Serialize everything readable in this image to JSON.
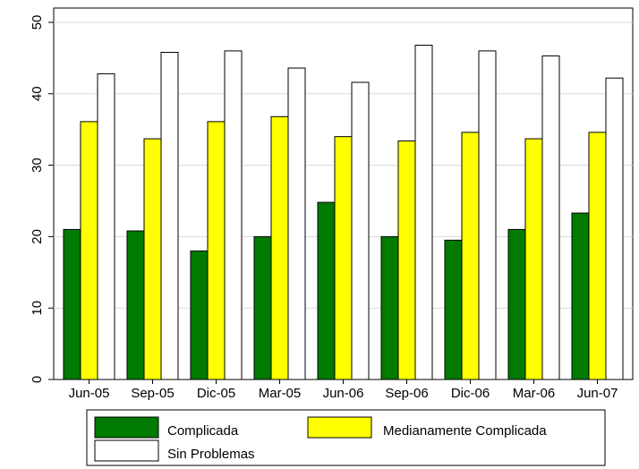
{
  "chart_data": {
    "type": "bar",
    "title": "",
    "xlabel": "",
    "ylabel": "",
    "categories": [
      "Jun-05",
      "Sep-05",
      "Dic-05",
      "Mar-05",
      "Jun-06",
      "Sep-06",
      "Dic-06",
      "Mar-06",
      "Jun-07"
    ],
    "series": [
      {
        "name": "Complicada",
        "color": "#007a00",
        "values": [
          21.0,
          20.8,
          18.0,
          20.0,
          24.8,
          20.0,
          19.5,
          21.0,
          23.3
        ]
      },
      {
        "name": "Medianamente Complicada",
        "color": "#ffff00",
        "values": [
          36.1,
          33.7,
          36.1,
          36.8,
          34.0,
          33.4,
          34.6,
          33.7,
          34.6
        ]
      },
      {
        "name": "Sin Problemas",
        "color": "#ffffff",
        "values": [
          42.8,
          45.8,
          46.0,
          43.6,
          41.6,
          46.8,
          46.0,
          45.3,
          42.2
        ]
      }
    ],
    "ylim": [
      0,
      52
    ],
    "yticks": [
      "0",
      "10",
      "20",
      "30",
      "40",
      "50"
    ],
    "grid": true,
    "legend_position": "bottom"
  }
}
